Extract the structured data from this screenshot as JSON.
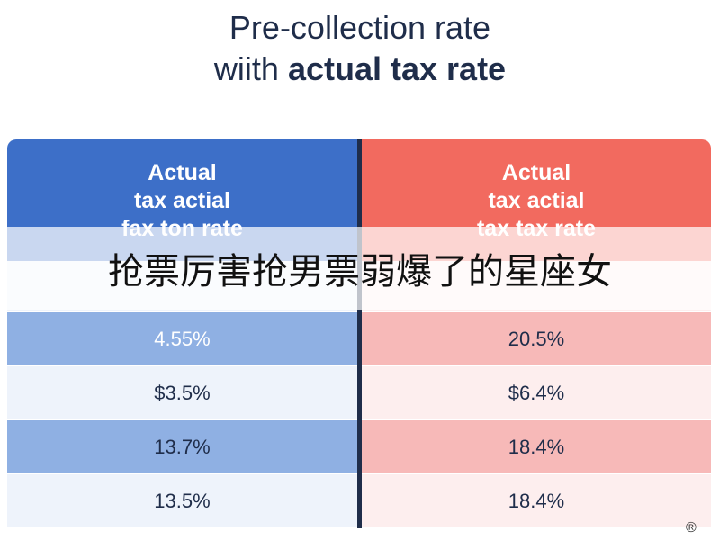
{
  "title": {
    "line1": "Pre-collection rate",
    "line2_prefix": "wiith",
    "line2_bold": "actual tax rate"
  },
  "table": {
    "headers": [
      [
        "Actual",
        "tax actial",
        "fax ton rate"
      ],
      [
        "Actual",
        "tax actial",
        "tax tax rate"
      ]
    ],
    "rows": [
      [
        "4.55%",
        "20.5%"
      ],
      [
        "$3.5%",
        "$6.4%"
      ],
      [
        "13.7%",
        "18.4%"
      ],
      [
        "13.5%",
        "18.4%"
      ]
    ]
  },
  "overlay": {
    "text": "抢票厉害抢男票弱爆了的星座女"
  },
  "corner_mark": "®"
}
